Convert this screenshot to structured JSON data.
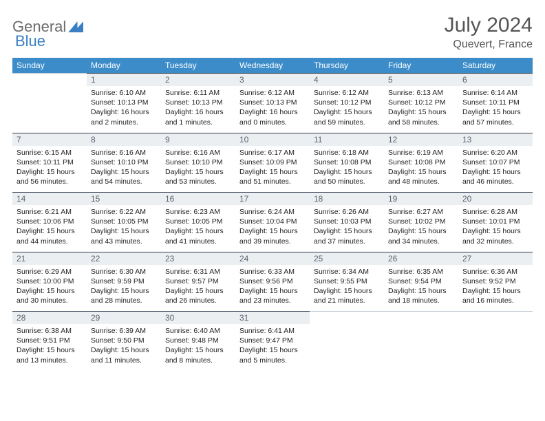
{
  "brand": {
    "part1": "General",
    "part2": "Blue"
  },
  "title": "July 2024",
  "location": "Quevert, France",
  "headers": [
    "Sunday",
    "Monday",
    "Tuesday",
    "Wednesday",
    "Thursday",
    "Friday",
    "Saturday"
  ],
  "colors": {
    "header_bg": "#3c8cc9",
    "header_text": "#ffffff",
    "daynum_bg": "#eceff1",
    "daynum_border": "#2f3b4a",
    "text": "#222222",
    "title_text": "#555555",
    "logo_text": "#6b6b6b",
    "logo_mark": "#3a7fc4"
  },
  "weeks": [
    {
      "nums": [
        "",
        "1",
        "2",
        "3",
        "4",
        "5",
        "6"
      ],
      "cells": [
        null,
        {
          "sunrise": "Sunrise: 6:10 AM",
          "sunset": "Sunset: 10:13 PM",
          "day1": "Daylight: 16 hours",
          "day2": "and 2 minutes."
        },
        {
          "sunrise": "Sunrise: 6:11 AM",
          "sunset": "Sunset: 10:13 PM",
          "day1": "Daylight: 16 hours",
          "day2": "and 1 minutes."
        },
        {
          "sunrise": "Sunrise: 6:12 AM",
          "sunset": "Sunset: 10:13 PM",
          "day1": "Daylight: 16 hours",
          "day2": "and 0 minutes."
        },
        {
          "sunrise": "Sunrise: 6:12 AM",
          "sunset": "Sunset: 10:12 PM",
          "day1": "Daylight: 15 hours",
          "day2": "and 59 minutes."
        },
        {
          "sunrise": "Sunrise: 6:13 AM",
          "sunset": "Sunset: 10:12 PM",
          "day1": "Daylight: 15 hours",
          "day2": "and 58 minutes."
        },
        {
          "sunrise": "Sunrise: 6:14 AM",
          "sunset": "Sunset: 10:11 PM",
          "day1": "Daylight: 15 hours",
          "day2": "and 57 minutes."
        }
      ]
    },
    {
      "nums": [
        "7",
        "8",
        "9",
        "10",
        "11",
        "12",
        "13"
      ],
      "cells": [
        {
          "sunrise": "Sunrise: 6:15 AM",
          "sunset": "Sunset: 10:11 PM",
          "day1": "Daylight: 15 hours",
          "day2": "and 56 minutes."
        },
        {
          "sunrise": "Sunrise: 6:16 AM",
          "sunset": "Sunset: 10:10 PM",
          "day1": "Daylight: 15 hours",
          "day2": "and 54 minutes."
        },
        {
          "sunrise": "Sunrise: 6:16 AM",
          "sunset": "Sunset: 10:10 PM",
          "day1": "Daylight: 15 hours",
          "day2": "and 53 minutes."
        },
        {
          "sunrise": "Sunrise: 6:17 AM",
          "sunset": "Sunset: 10:09 PM",
          "day1": "Daylight: 15 hours",
          "day2": "and 51 minutes."
        },
        {
          "sunrise": "Sunrise: 6:18 AM",
          "sunset": "Sunset: 10:08 PM",
          "day1": "Daylight: 15 hours",
          "day2": "and 50 minutes."
        },
        {
          "sunrise": "Sunrise: 6:19 AM",
          "sunset": "Sunset: 10:08 PM",
          "day1": "Daylight: 15 hours",
          "day2": "and 48 minutes."
        },
        {
          "sunrise": "Sunrise: 6:20 AM",
          "sunset": "Sunset: 10:07 PM",
          "day1": "Daylight: 15 hours",
          "day2": "and 46 minutes."
        }
      ]
    },
    {
      "nums": [
        "14",
        "15",
        "16",
        "17",
        "18",
        "19",
        "20"
      ],
      "cells": [
        {
          "sunrise": "Sunrise: 6:21 AM",
          "sunset": "Sunset: 10:06 PM",
          "day1": "Daylight: 15 hours",
          "day2": "and 44 minutes."
        },
        {
          "sunrise": "Sunrise: 6:22 AM",
          "sunset": "Sunset: 10:05 PM",
          "day1": "Daylight: 15 hours",
          "day2": "and 43 minutes."
        },
        {
          "sunrise": "Sunrise: 6:23 AM",
          "sunset": "Sunset: 10:05 PM",
          "day1": "Daylight: 15 hours",
          "day2": "and 41 minutes."
        },
        {
          "sunrise": "Sunrise: 6:24 AM",
          "sunset": "Sunset: 10:04 PM",
          "day1": "Daylight: 15 hours",
          "day2": "and 39 minutes."
        },
        {
          "sunrise": "Sunrise: 6:26 AM",
          "sunset": "Sunset: 10:03 PM",
          "day1": "Daylight: 15 hours",
          "day2": "and 37 minutes."
        },
        {
          "sunrise": "Sunrise: 6:27 AM",
          "sunset": "Sunset: 10:02 PM",
          "day1": "Daylight: 15 hours",
          "day2": "and 34 minutes."
        },
        {
          "sunrise": "Sunrise: 6:28 AM",
          "sunset": "Sunset: 10:01 PM",
          "day1": "Daylight: 15 hours",
          "day2": "and 32 minutes."
        }
      ]
    },
    {
      "nums": [
        "21",
        "22",
        "23",
        "24",
        "25",
        "26",
        "27"
      ],
      "cells": [
        {
          "sunrise": "Sunrise: 6:29 AM",
          "sunset": "Sunset: 10:00 PM",
          "day1": "Daylight: 15 hours",
          "day2": "and 30 minutes."
        },
        {
          "sunrise": "Sunrise: 6:30 AM",
          "sunset": "Sunset: 9:59 PM",
          "day1": "Daylight: 15 hours",
          "day2": "and 28 minutes."
        },
        {
          "sunrise": "Sunrise: 6:31 AM",
          "sunset": "Sunset: 9:57 PM",
          "day1": "Daylight: 15 hours",
          "day2": "and 26 minutes."
        },
        {
          "sunrise": "Sunrise: 6:33 AM",
          "sunset": "Sunset: 9:56 PM",
          "day1": "Daylight: 15 hours",
          "day2": "and 23 minutes."
        },
        {
          "sunrise": "Sunrise: 6:34 AM",
          "sunset": "Sunset: 9:55 PM",
          "day1": "Daylight: 15 hours",
          "day2": "and 21 minutes."
        },
        {
          "sunrise": "Sunrise: 6:35 AM",
          "sunset": "Sunset: 9:54 PM",
          "day1": "Daylight: 15 hours",
          "day2": "and 18 minutes."
        },
        {
          "sunrise": "Sunrise: 6:36 AM",
          "sunset": "Sunset: 9:52 PM",
          "day1": "Daylight: 15 hours",
          "day2": "and 16 minutes."
        }
      ]
    },
    {
      "nums": [
        "28",
        "29",
        "30",
        "31",
        "",
        "",
        ""
      ],
      "cells": [
        {
          "sunrise": "Sunrise: 6:38 AM",
          "sunset": "Sunset: 9:51 PM",
          "day1": "Daylight: 15 hours",
          "day2": "and 13 minutes."
        },
        {
          "sunrise": "Sunrise: 6:39 AM",
          "sunset": "Sunset: 9:50 PM",
          "day1": "Daylight: 15 hours",
          "day2": "and 11 minutes."
        },
        {
          "sunrise": "Sunrise: 6:40 AM",
          "sunset": "Sunset: 9:48 PM",
          "day1": "Daylight: 15 hours",
          "day2": "and 8 minutes."
        },
        {
          "sunrise": "Sunrise: 6:41 AM",
          "sunset": "Sunset: 9:47 PM",
          "day1": "Daylight: 15 hours",
          "day2": "and 5 minutes."
        },
        null,
        null,
        null
      ]
    }
  ]
}
